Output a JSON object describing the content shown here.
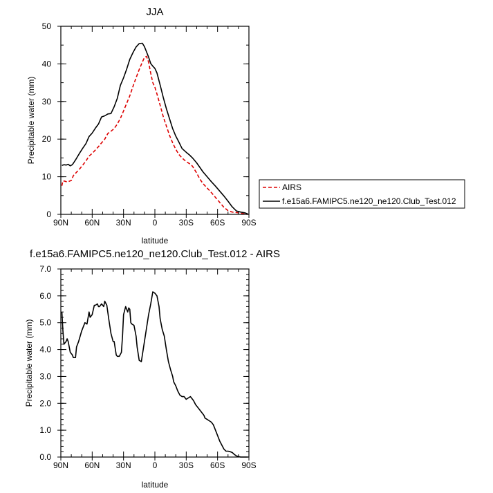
{
  "chart_data": [
    {
      "type": "line",
      "title": "JJA",
      "xlabel": "latitude",
      "ylabel": "Precipitable water (mm)",
      "xlim": [
        90,
        -90
      ],
      "ylim": [
        0,
        50
      ],
      "x_ticks": [
        {
          "value": 90,
          "label": "90N"
        },
        {
          "value": 60,
          "label": "60N"
        },
        {
          "value": 30,
          "label": "30N"
        },
        {
          "value": 0,
          "label": "0"
        },
        {
          "value": -30,
          "label": "30S"
        },
        {
          "value": -60,
          "label": "60S"
        },
        {
          "value": -90,
          "label": "90S"
        }
      ],
      "y_ticks": [
        {
          "value": 0,
          "label": "0"
        },
        {
          "value": 10,
          "label": "10"
        },
        {
          "value": 20,
          "label": "20"
        },
        {
          "value": 30,
          "label": "30"
        },
        {
          "value": 40,
          "label": "40"
        },
        {
          "value": 50,
          "label": "50"
        }
      ],
      "legend_placement": "right",
      "series": [
        {
          "name": "AIRS",
          "color": "#dd0000",
          "dash": "dashed",
          "x": [
            89,
            88,
            86,
            84,
            82,
            80,
            78,
            75,
            72,
            69,
            66,
            63,
            60,
            57,
            54,
            51,
            48,
            45,
            42,
            39,
            36,
            33,
            30,
            27,
            24,
            21,
            18,
            15,
            12,
            10,
            8,
            6,
            4,
            2,
            0,
            -2,
            -5,
            -8,
            -11,
            -14,
            -17,
            -20,
            -23,
            -26,
            -30,
            -33,
            -36,
            -40,
            -43,
            -46,
            -50,
            -54,
            -58,
            -62,
            -66,
            -70,
            -74,
            -78,
            -82,
            -86,
            -89
          ],
          "y": [
            7.6,
            8.9,
            8.8,
            8.6,
            8.8,
            9.0,
            10.3,
            11.2,
            12.1,
            13.1,
            14.2,
            15.5,
            16.2,
            17.1,
            18.0,
            19.0,
            20.0,
            21.5,
            22.1,
            22.8,
            24.0,
            25.5,
            27.5,
            29.5,
            31.5,
            34.0,
            36.3,
            38.5,
            40.5,
            41.7,
            42.0,
            40.5,
            37.5,
            35.0,
            33.8,
            32.0,
            29.0,
            26.0,
            23.5,
            21.0,
            19.0,
            17.3,
            15.9,
            15.0,
            14.0,
            13.5,
            12.8,
            11.0,
            9.4,
            8.2,
            7.0,
            5.8,
            4.5,
            3.2,
            1.9,
            1.0,
            0.6,
            0.5,
            0.3,
            0.1,
            0.0
          ]
        },
        {
          "name": "f.e15a6.FAMIPC5.ne120_ne120.Club_Test.012",
          "color": "#000000",
          "dash": "solid",
          "x": [
            89,
            87,
            85,
            83,
            81,
            79,
            77,
            75,
            72,
            69,
            66,
            63,
            60,
            57,
            54,
            51,
            48,
            45,
            42,
            39,
            36,
            33,
            30,
            27,
            24,
            21,
            18,
            15,
            12,
            10,
            8,
            6,
            4,
            2,
            0,
            -2,
            -5,
            -8,
            -11,
            -14,
            -17,
            -20,
            -23,
            -26,
            -30,
            -33,
            -36,
            -40,
            -43,
            -46,
            -50,
            -54,
            -58,
            -62,
            -66,
            -70,
            -74,
            -78,
            -82,
            -86,
            -89
          ],
          "y": [
            13.0,
            13.2,
            13.1,
            13.3,
            12.9,
            13.2,
            14.0,
            14.9,
            16.3,
            17.6,
            18.8,
            20.7,
            21.6,
            22.9,
            24.0,
            25.9,
            26.2,
            26.7,
            26.8,
            28.6,
            30.8,
            34.3,
            36.3,
            38.6,
            41.2,
            43.0,
            44.5,
            45.4,
            45.5,
            44.6,
            43.2,
            41.8,
            40.1,
            39.4,
            38.8,
            37.6,
            34.4,
            31.1,
            28.1,
            25.4,
            22.8,
            20.8,
            19.2,
            17.5,
            16.5,
            15.8,
            15.0,
            13.7,
            12.5,
            11.3,
            10.0,
            8.7,
            7.5,
            6.2,
            4.9,
            3.5,
            2.0,
            0.9,
            0.6,
            0.4,
            0.1
          ]
        }
      ]
    },
    {
      "type": "line",
      "title": "f.e15a6.FAMIPC5.ne120_ne120.Club_Test.012 - AIRS",
      "xlabel": "latitude",
      "ylabel": "Precipitable water (mm)",
      "xlim": [
        90,
        -90
      ],
      "ylim": [
        0,
        7
      ],
      "x_ticks": [
        {
          "value": 90,
          "label": "90N"
        },
        {
          "value": 60,
          "label": "60N"
        },
        {
          "value": 30,
          "label": "30N"
        },
        {
          "value": 0,
          "label": "0"
        },
        {
          "value": -30,
          "label": "30S"
        },
        {
          "value": -60,
          "label": "60S"
        },
        {
          "value": -90,
          "label": "90S"
        }
      ],
      "y_ticks": [
        {
          "value": 0,
          "label": "0.0"
        },
        {
          "value": 1,
          "label": "1.0"
        },
        {
          "value": 2,
          "label": "2.0"
        },
        {
          "value": 3,
          "label": "3.0"
        },
        {
          "value": 4,
          "label": "4.0"
        },
        {
          "value": 5,
          "label": "5.0"
        },
        {
          "value": 6,
          "label": "6.0"
        },
        {
          "value": 7,
          "label": "7.0"
        }
      ],
      "series": [
        {
          "color": "#000000",
          "dash": "solid",
          "x": [
            89,
            88,
            87,
            85,
            84,
            83,
            81,
            79,
            78,
            76,
            75,
            73,
            70,
            67,
            65,
            63,
            62,
            60,
            58,
            57,
            55,
            54,
            53,
            51,
            49,
            48,
            46,
            44,
            42,
            40,
            39,
            37,
            36,
            34,
            32,
            31,
            30,
            28,
            26,
            25,
            24,
            23,
            22,
            20,
            18,
            17,
            15,
            13,
            12,
            11,
            10,
            9,
            8,
            6,
            4,
            2,
            0,
            -2,
            -4,
            -5,
            -7,
            -9,
            -11,
            -13,
            -15,
            -17,
            -18,
            -20,
            -22,
            -24,
            -26,
            -28,
            -30,
            -32,
            -34,
            -35,
            -37,
            -39,
            -41,
            -43,
            -45,
            -47,
            -48,
            -50,
            -52,
            -54,
            -56,
            -58,
            -60,
            -62,
            -64,
            -66,
            -68,
            -70,
            -72,
            -74,
            -76,
            -78,
            -80,
            -82,
            -84,
            -86,
            -88,
            -89
          ],
          "y": [
            5.4,
            4.7,
            4.2,
            4.3,
            4.4,
            4.3,
            3.9,
            3.8,
            3.7,
            3.7,
            4.1,
            4.3,
            4.7,
            5.0,
            4.95,
            5.4,
            5.2,
            5.3,
            5.65,
            5.65,
            5.7,
            5.6,
            5.6,
            5.7,
            5.6,
            5.8,
            5.65,
            5.1,
            4.6,
            4.3,
            4.3,
            3.8,
            3.75,
            3.75,
            3.9,
            4.5,
            5.3,
            5.6,
            5.4,
            5.55,
            5.5,
            5.0,
            4.95,
            4.9,
            4.5,
            4.1,
            3.6,
            3.55,
            3.8,
            4.05,
            4.3,
            4.55,
            4.8,
            5.3,
            5.7,
            6.15,
            6.1,
            6.0,
            5.6,
            5.15,
            4.75,
            4.5,
            4.0,
            3.55,
            3.25,
            3.0,
            2.8,
            2.65,
            2.45,
            2.3,
            2.25,
            2.25,
            2.15,
            2.2,
            2.25,
            2.2,
            2.1,
            1.95,
            1.85,
            1.75,
            1.65,
            1.55,
            1.45,
            1.4,
            1.35,
            1.3,
            1.2,
            1.0,
            0.8,
            0.6,
            0.45,
            0.3,
            0.22,
            0.22,
            0.2,
            0.17,
            0.1,
            0.04,
            0.02,
            0.0,
            0.0,
            0.0,
            0.0,
            0.0
          ]
        }
      ]
    }
  ]
}
